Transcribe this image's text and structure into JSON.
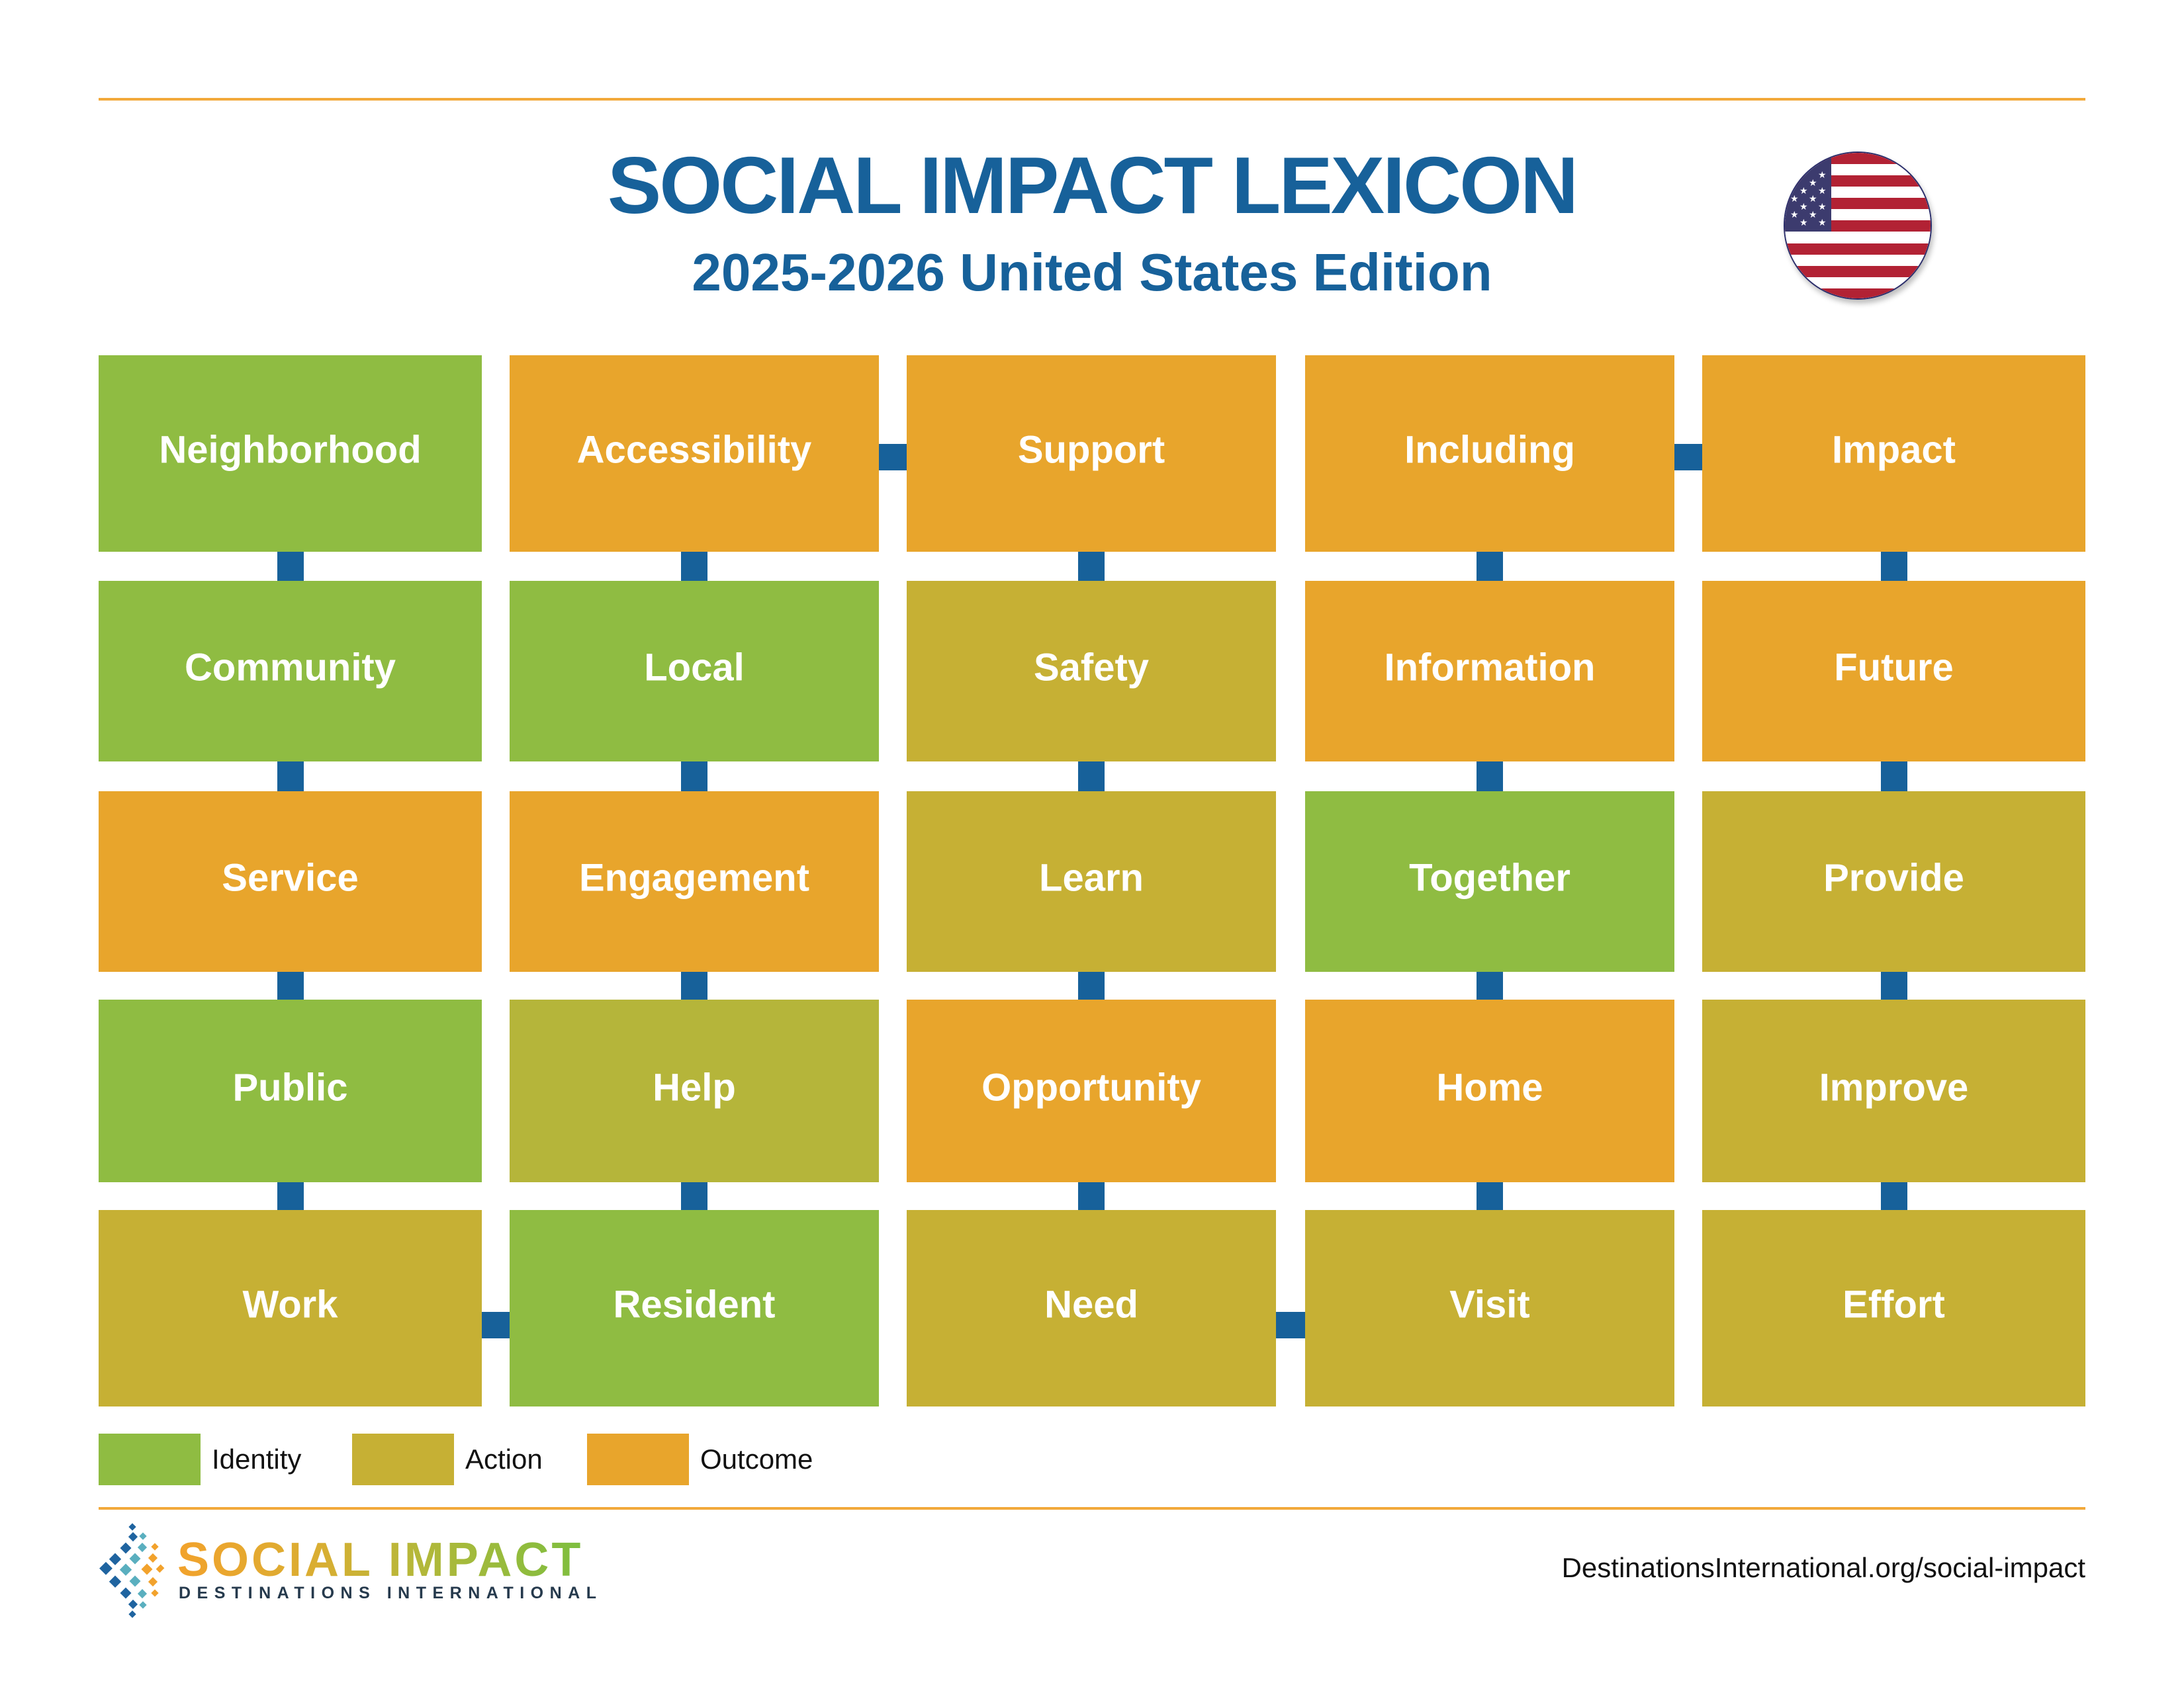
{
  "header": {
    "title": "SOCIAL IMPACT LEXICON",
    "subtitle": "2025-2026 United States Edition",
    "flag_icon": "us-flag-icon"
  },
  "colors": {
    "identity": "#8FBC42",
    "action": "#C6B034",
    "action_alt": "#B5B53A",
    "outcome": "#E8A52C",
    "connector": "#17619A",
    "title": "#17619A",
    "rule": "#F2A93B"
  },
  "legend": [
    {
      "key": "identity",
      "label": "Identity"
    },
    {
      "key": "action",
      "label": "Action"
    },
    {
      "key": "outcome",
      "label": "Outcome"
    }
  ],
  "grid": {
    "columns": [
      [
        {
          "word": "Neighborhood",
          "category": "identity"
        },
        {
          "word": "Community",
          "category": "identity"
        },
        {
          "word": "Service",
          "category": "outcome"
        },
        {
          "word": "Public",
          "category": "identity"
        },
        {
          "word": "Work",
          "category": "action"
        }
      ],
      [
        {
          "word": "Accessibility",
          "category": "outcome"
        },
        {
          "word": "Local",
          "category": "identity"
        },
        {
          "word": "Engagement",
          "category": "outcome"
        },
        {
          "word": "Help",
          "category": "action",
          "shade": "action_alt"
        },
        {
          "word": "Resident",
          "category": "identity"
        }
      ],
      [
        {
          "word": "Support",
          "category": "outcome"
        },
        {
          "word": "Safety",
          "category": "action"
        },
        {
          "word": "Learn",
          "category": "action"
        },
        {
          "word": "Opportunity",
          "category": "outcome"
        },
        {
          "word": "Need",
          "category": "action"
        }
      ],
      [
        {
          "word": "Including",
          "category": "outcome"
        },
        {
          "word": "Information",
          "category": "outcome"
        },
        {
          "word": "Together",
          "category": "identity"
        },
        {
          "word": "Home",
          "category": "outcome"
        },
        {
          "word": "Visit",
          "category": "action"
        }
      ],
      [
        {
          "word": "Impact",
          "category": "outcome"
        },
        {
          "word": "Future",
          "category": "outcome"
        },
        {
          "word": "Provide",
          "category": "action"
        },
        {
          "word": "Improve",
          "category": "action"
        },
        {
          "word": "Effort",
          "category": "action"
        }
      ]
    ],
    "horizontal_links": [
      {
        "row": 1,
        "from_col": 2,
        "to_col": 3
      },
      {
        "row": 1,
        "from_col": 4,
        "to_col": 5
      },
      {
        "row": 5,
        "from_col": 1,
        "to_col": 2
      },
      {
        "row": 5,
        "from_col": 3,
        "to_col": 4
      }
    ]
  },
  "footer": {
    "logo_title": "SOCIAL IMPACT",
    "logo_subtitle": "DESTINATIONS INTERNATIONAL",
    "url": "DestinationsInternational.org/social-impact"
  }
}
